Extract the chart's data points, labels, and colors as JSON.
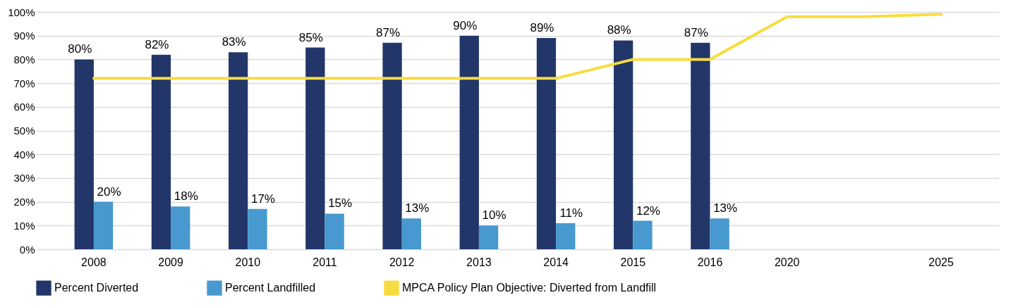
{
  "chart_data": {
    "type": "bar",
    "categories": [
      "2008",
      "2009",
      "2010",
      "2011",
      "2012",
      "2013",
      "2014",
      "2015",
      "2016",
      "2020",
      null,
      "2025"
    ],
    "series": [
      {
        "name": "Percent Diverted",
        "color": "#22366a",
        "values": [
          80,
          82,
          83,
          85,
          87,
          90,
          89,
          88,
          87,
          null,
          null,
          null
        ],
        "value_labels": [
          "80%",
          "82%",
          "83%",
          "85%",
          "87%",
          "90%",
          "89%",
          "88%",
          "87%",
          null,
          null,
          null
        ]
      },
      {
        "name": "Percent Landfilled",
        "color": "#4799cf",
        "values": [
          20,
          18,
          17,
          15,
          13,
          10,
          11,
          12,
          13,
          null,
          null,
          null
        ],
        "value_labels": [
          "20%",
          "18%",
          "17%",
          "15%",
          "13%",
          "10%",
          "11%",
          "12%",
          "13%",
          null,
          null,
          null
        ]
      },
      {
        "name": "MPCA Policy Plan Objective: Diverted from Landfill",
        "type": "line",
        "color": "#f7dc3f",
        "values": [
          72,
          72,
          72,
          72,
          72,
          72,
          72,
          80,
          80,
          98,
          98,
          99
        ]
      }
    ],
    "ylim": [
      0,
      100
    ],
    "yticks": [
      {
        "value": 0,
        "label": "0%"
      },
      {
        "value": 10,
        "label": "10%"
      },
      {
        "value": 20,
        "label": "20%"
      },
      {
        "value": 30,
        "label": "30%"
      },
      {
        "value": 40,
        "label": "40%"
      },
      {
        "value": 50,
        "label": "50%"
      },
      {
        "value": 60,
        "label": "60%"
      },
      {
        "value": 70,
        "label": "70%"
      },
      {
        "value": 80,
        "label": "80%"
      },
      {
        "value": 90,
        "label": "90%"
      },
      {
        "value": 100,
        "label": "100%"
      }
    ],
    "grid": "y",
    "legend": "bottom",
    "line_style": "solid"
  }
}
